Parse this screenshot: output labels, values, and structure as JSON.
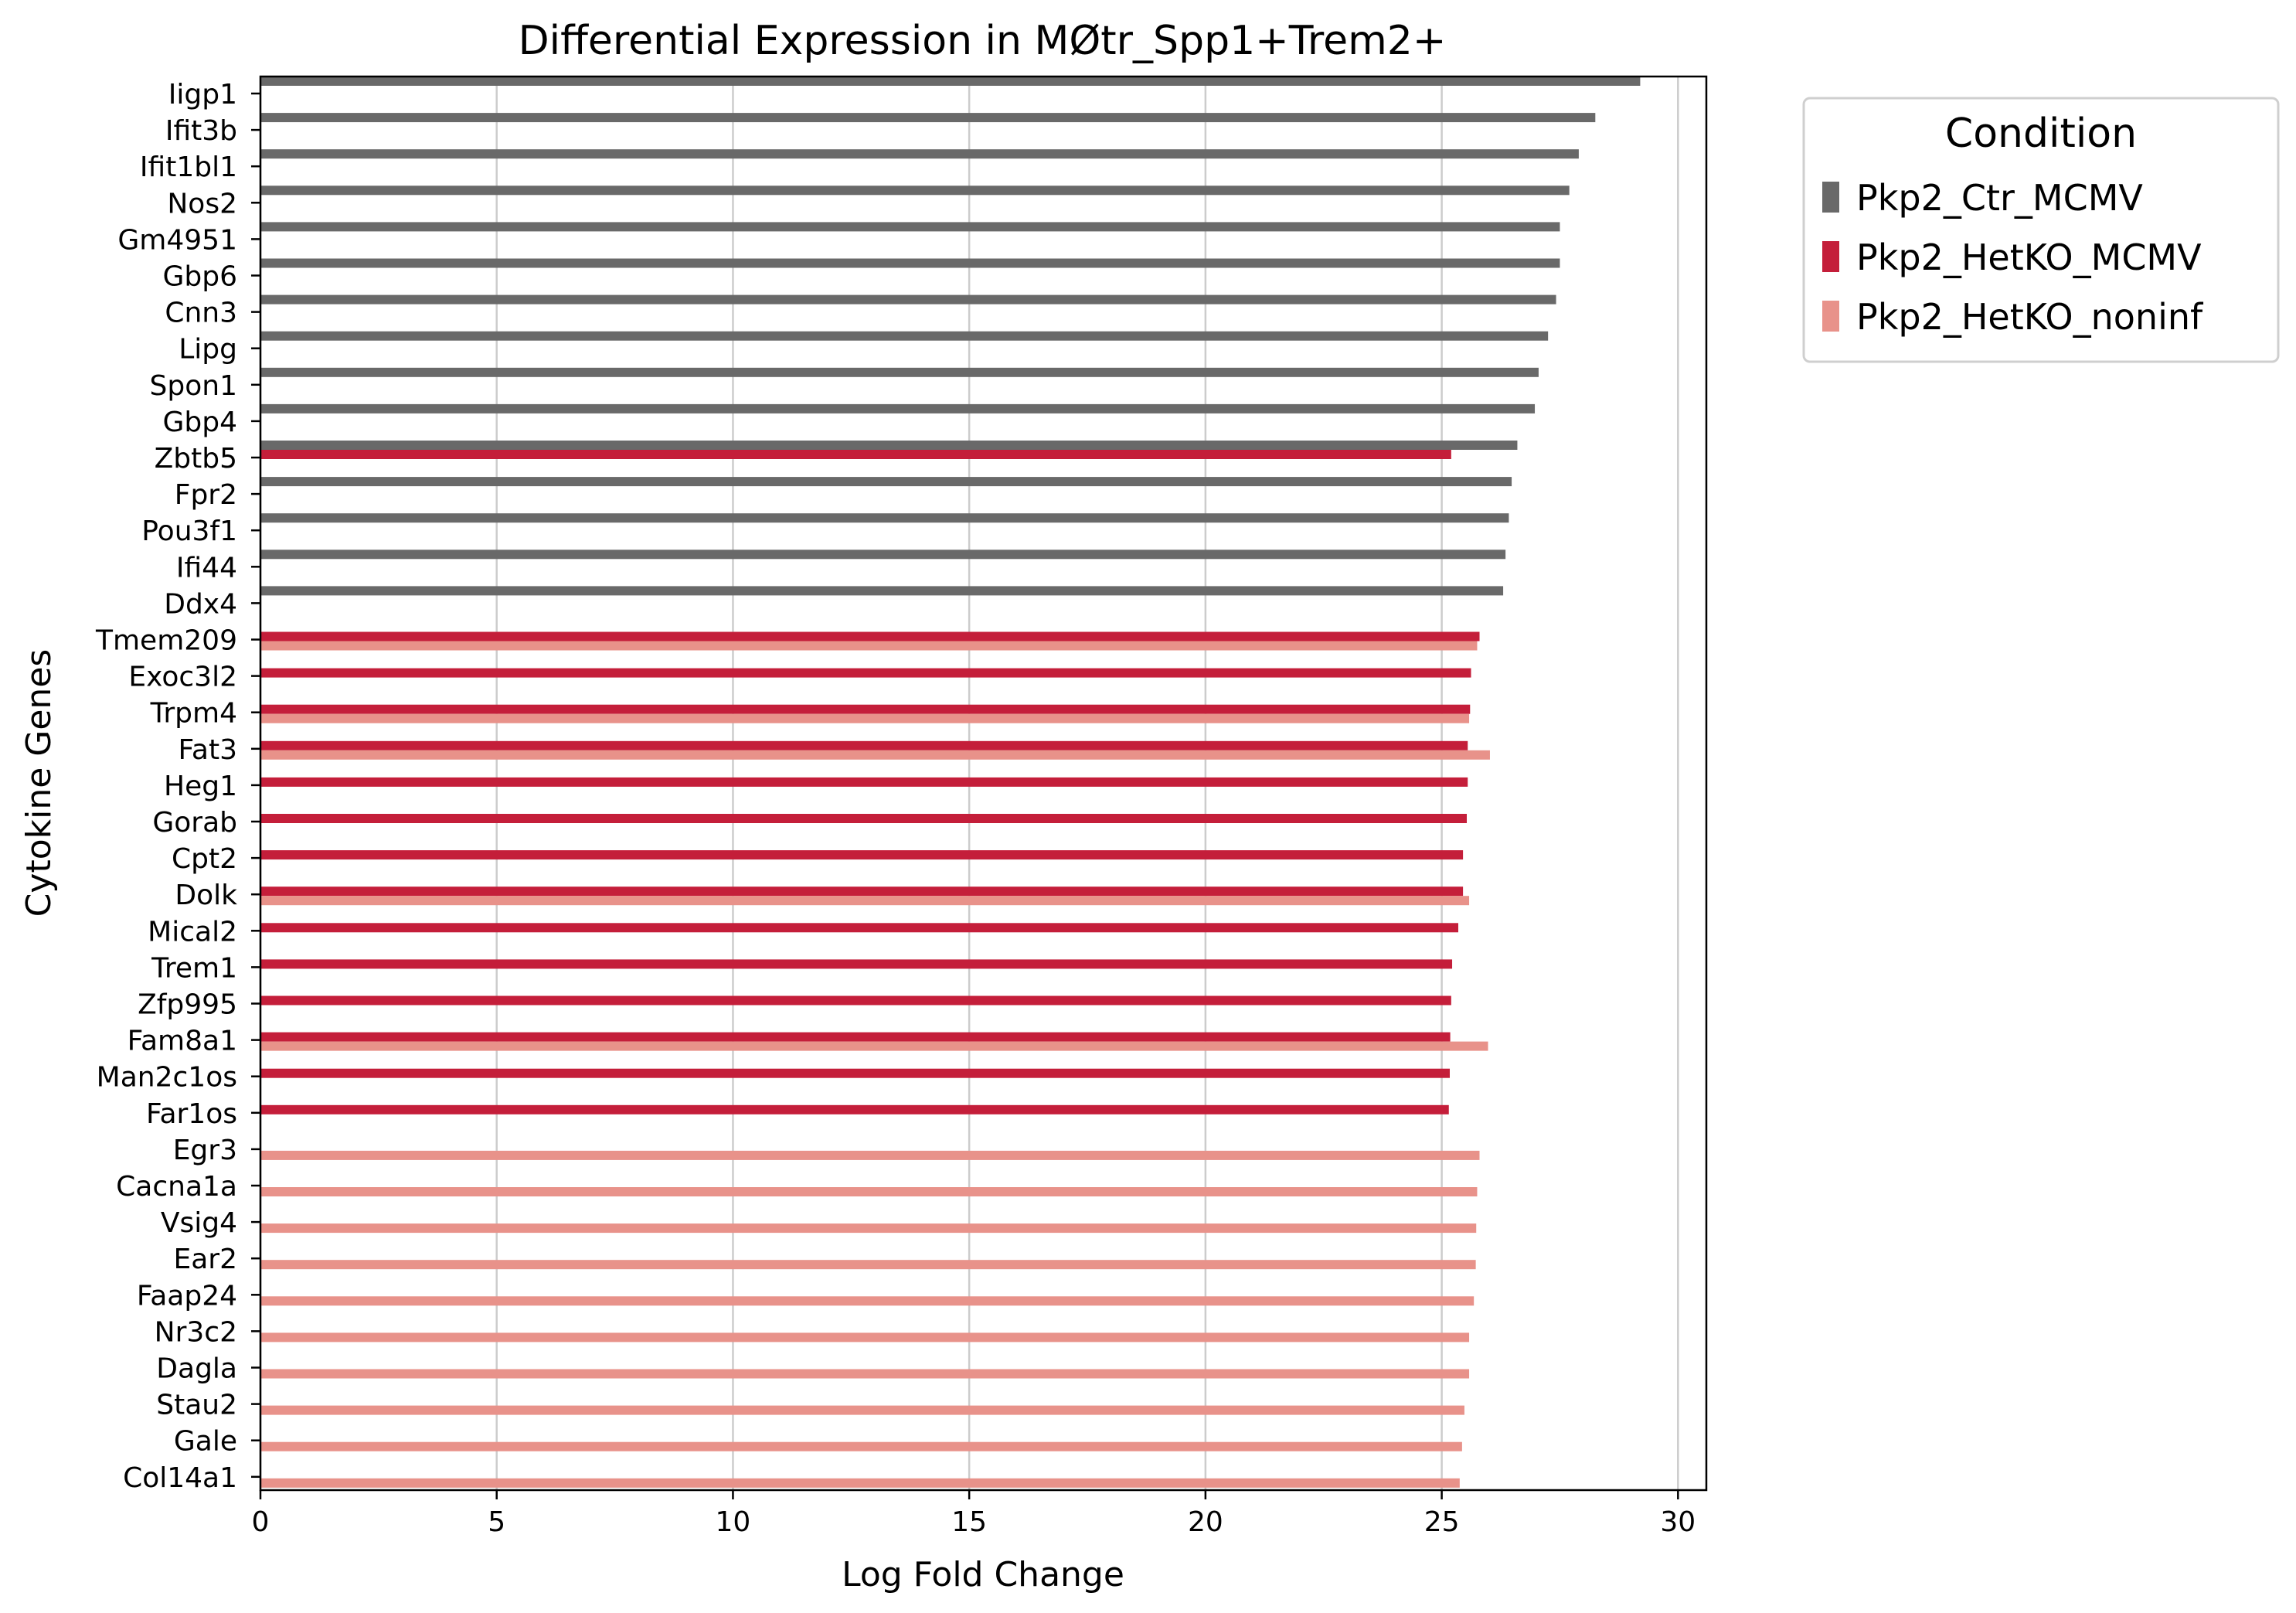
{
  "chart_data": {
    "type": "bar",
    "orientation": "horizontal",
    "title": "Differential Expression in MØtr_Spp1+Trem2+",
    "xlabel": "Log Fold Change",
    "ylabel": "Cytokine Genes",
    "xlim": [
      0,
      30.6
    ],
    "xticks": [
      "0",
      "5",
      "10",
      "15",
      "20",
      "25",
      "30"
    ],
    "xtick_values": [
      0,
      5,
      10,
      15,
      20,
      25,
      30
    ],
    "grid": "vertical",
    "legend": {
      "title": "Condition",
      "placement": "outside-top-right"
    },
    "categories": [
      "Iigp1",
      "Ifit3b",
      "Ifit1bl1",
      "Nos2",
      "Gm4951",
      "Gbp6",
      "Cnn3",
      "Lipg",
      "Spon1",
      "Gbp4",
      "Zbtb5",
      "Fpr2",
      "Pou3f1",
      "Ifi44",
      "Ddx4",
      "Tmem209",
      "Exoc3l2",
      "Trpm4",
      "Fat3",
      "Heg1",
      "Gorab",
      "Cpt2",
      "Dolk",
      "Mical2",
      "Trem1",
      "Zfp995",
      "Fam8a1",
      "Man2c1os",
      "Far1os",
      "Egr3",
      "Cacna1a",
      "Vsig4",
      "Ear2",
      "Faap24",
      "Nr3c2",
      "Dagla",
      "Stau2",
      "Gale",
      "Col14a1"
    ],
    "series": [
      {
        "name": "Pkp2_Ctr_MCMV",
        "color": "#696969",
        "values": [
          29.2,
          28.25,
          27.9,
          27.7,
          27.5,
          27.5,
          27.42,
          27.25,
          27.05,
          26.97,
          26.6,
          26.48,
          26.42,
          26.35,
          26.3,
          null,
          null,
          null,
          null,
          null,
          null,
          null,
          null,
          null,
          null,
          null,
          null,
          null,
          null,
          null,
          null,
          null,
          null,
          null,
          null,
          null,
          null,
          null,
          null
        ]
      },
      {
        "name": "Pkp2_HetKO_MCMV",
        "color": "#c41e3a",
        "values": [
          null,
          null,
          null,
          null,
          null,
          null,
          null,
          null,
          null,
          null,
          25.2,
          null,
          null,
          null,
          null,
          25.8,
          25.62,
          25.6,
          25.55,
          25.55,
          25.53,
          25.45,
          25.45,
          25.35,
          25.22,
          25.2,
          25.18,
          25.17,
          25.15,
          null,
          null,
          null,
          null,
          null,
          null,
          null,
          null,
          null,
          null
        ]
      },
      {
        "name": "Pkp2_HetKO_noninf",
        "color": "#e8928a",
        "values": [
          null,
          null,
          null,
          null,
          null,
          null,
          null,
          null,
          null,
          null,
          null,
          null,
          null,
          null,
          null,
          25.75,
          null,
          25.58,
          26.02,
          null,
          null,
          null,
          25.58,
          null,
          null,
          null,
          25.98,
          null,
          null,
          25.8,
          25.75,
          25.73,
          25.72,
          25.68,
          25.58,
          25.58,
          25.48,
          25.43,
          25.38
        ]
      }
    ]
  }
}
